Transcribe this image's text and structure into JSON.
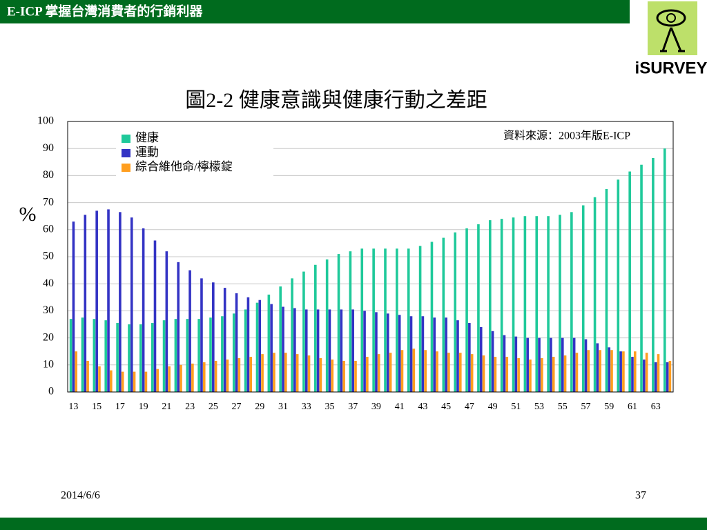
{
  "header": {
    "title": "E-ICP 掌握台灣消費者的行銷利器"
  },
  "logo": {
    "text": "iSURVEY"
  },
  "chart_data": {
    "type": "bar",
    "title": "圖2-2  健康意識與健康行動之差距",
    "y_label": "%",
    "annotation": "資料來源：2003年版E-ICP",
    "categories": [
      "13",
      null,
      "15",
      null,
      "17",
      null,
      "19",
      null,
      "21",
      null,
      "23",
      null,
      "25",
      null,
      "27",
      null,
      "29",
      null,
      "31",
      null,
      "33",
      null,
      "35",
      null,
      "37",
      null,
      "39",
      null,
      "41",
      null,
      "43",
      null,
      "45",
      null,
      "47",
      null,
      "49",
      null,
      "51",
      null,
      "53",
      null,
      "55",
      null,
      "57",
      null,
      "59",
      null,
      "61",
      null,
      "63",
      null
    ],
    "series": [
      {
        "name": "健康",
        "color": "#1fc99a",
        "values": [
          27,
          27.5,
          27,
          26.5,
          25.5,
          25,
          25,
          25.5,
          26.5,
          27,
          27,
          27,
          27.5,
          28,
          29,
          30.5,
          33,
          36,
          39,
          42,
          44.5,
          47,
          49,
          51,
          52,
          53,
          53,
          53,
          53,
          53,
          54,
          55.5,
          57,
          59,
          60.5,
          62,
          63.5,
          64,
          64.5,
          65,
          65,
          65,
          65.5,
          66.5,
          69,
          72,
          75,
          78.5,
          81.5,
          84,
          86.5,
          90
        ]
      },
      {
        "name": "運動",
        "color": "#3333c4",
        "values": [
          63,
          65.5,
          67,
          67.5,
          66.5,
          64.5,
          60.5,
          56,
          52,
          48,
          45,
          42,
          40.5,
          38.5,
          36.5,
          35,
          34,
          32.5,
          31.5,
          31,
          30.5,
          30.5,
          30.5,
          30.5,
          30.5,
          30,
          29.5,
          29,
          28.5,
          28,
          28,
          27.5,
          27.5,
          26.5,
          25.5,
          24,
          22.5,
          21,
          20.5,
          20,
          20,
          20,
          20,
          20,
          19.5,
          18,
          16.5,
          15,
          13,
          12,
          11,
          11
        ]
      },
      {
        "name": "綜合維他命/檸檬錠",
        "color": "#ff9e1f",
        "values": [
          15,
          11.5,
          9.5,
          8,
          7.5,
          7.5,
          7.5,
          8.5,
          9.5,
          10,
          10.5,
          11,
          11.5,
          12,
          12.5,
          13,
          14,
          14.5,
          14.5,
          14,
          13.5,
          12.5,
          12,
          11.5,
          11.5,
          13,
          14,
          14.5,
          15.5,
          16,
          15.5,
          15,
          14.5,
          14.5,
          14,
          13.5,
          13,
          13,
          12.5,
          12,
          12.5,
          13,
          13.5,
          14.5,
          15.5,
          15.5,
          15.5,
          15,
          15,
          14.5,
          14,
          11.5
        ]
      }
    ],
    "ylim": [
      0,
      100
    ],
    "yticks": [
      0,
      10,
      20,
      30,
      40,
      50,
      60,
      70,
      80,
      90,
      100
    ],
    "grid": true,
    "legend": "upper left"
  },
  "footer": {
    "date": "2014/6/6",
    "page": "37"
  }
}
